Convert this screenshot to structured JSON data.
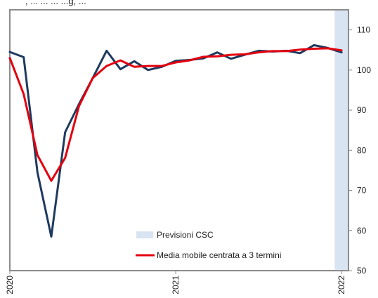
{
  "chart_data": {
    "type": "line",
    "title_fragment": ", ... ... ... ...g, ...",
    "x": [
      "2020-01",
      "2020-02",
      "2020-03",
      "2020-04",
      "2020-05",
      "2020-06",
      "2020-07",
      "2020-08",
      "2020-09",
      "2020-10",
      "2020-11",
      "2020-12",
      "2021-01",
      "2021-02",
      "2021-03",
      "2021-04",
      "2021-05",
      "2021-06",
      "2021-07",
      "2021-08",
      "2021-09",
      "2021-10",
      "2021-11",
      "2021-12",
      "2022-01"
    ],
    "x_tick_labels": [
      {
        "x": "2020-01",
        "label": "2020"
      },
      {
        "x": "2021-01",
        "label": "2021"
      },
      {
        "x": "2022-01",
        "label": "2022"
      }
    ],
    "ylim": [
      50,
      115
    ],
    "yticks": [
      50,
      60,
      70,
      80,
      90,
      100,
      110
    ],
    "y_axis_side": "right",
    "grid": false,
    "forecast_band": {
      "from": "2021-12",
      "to": "2022-01",
      "label": "Previsioni CSC",
      "color": "#d9e4f2"
    },
    "series": [
      {
        "name": "",
        "color": "#1f3a5f",
        "values": [
          104.5,
          103.2,
          74.5,
          58.5,
          84.5,
          91.5,
          98.0,
          104.8,
          100.2,
          102.2,
          100.0,
          100.8,
          102.3,
          102.5,
          102.9,
          104.4,
          102.8,
          103.8,
          104.8,
          104.6,
          104.8,
          104.2,
          106.2,
          105.5,
          104.4
        ]
      },
      {
        "name": "Media mobile centrata a 3 termini",
        "color": "#e3000f",
        "values": [
          103.0,
          94.0,
          78.8,
          72.4,
          78.1,
          91.0,
          98.0,
          101.0,
          102.4,
          100.8,
          101.0,
          101.0,
          101.9,
          102.4,
          103.3,
          103.4,
          103.8,
          103.9,
          104.4,
          104.7,
          104.7,
          105.1,
          105.3,
          105.4,
          104.9
        ]
      }
    ],
    "legend": {
      "placement": "bottom-center",
      "entries": [
        {
          "label": "Previsioni CSC",
          "kind": "band",
          "color": "#d9e4f2"
        },
        {
          "label": "Media mobile centrata a 3 termini",
          "kind": "line",
          "color": "#e3000f"
        }
      ]
    },
    "colors": {
      "axis": "#8c8c8c",
      "text": "#222222"
    }
  }
}
